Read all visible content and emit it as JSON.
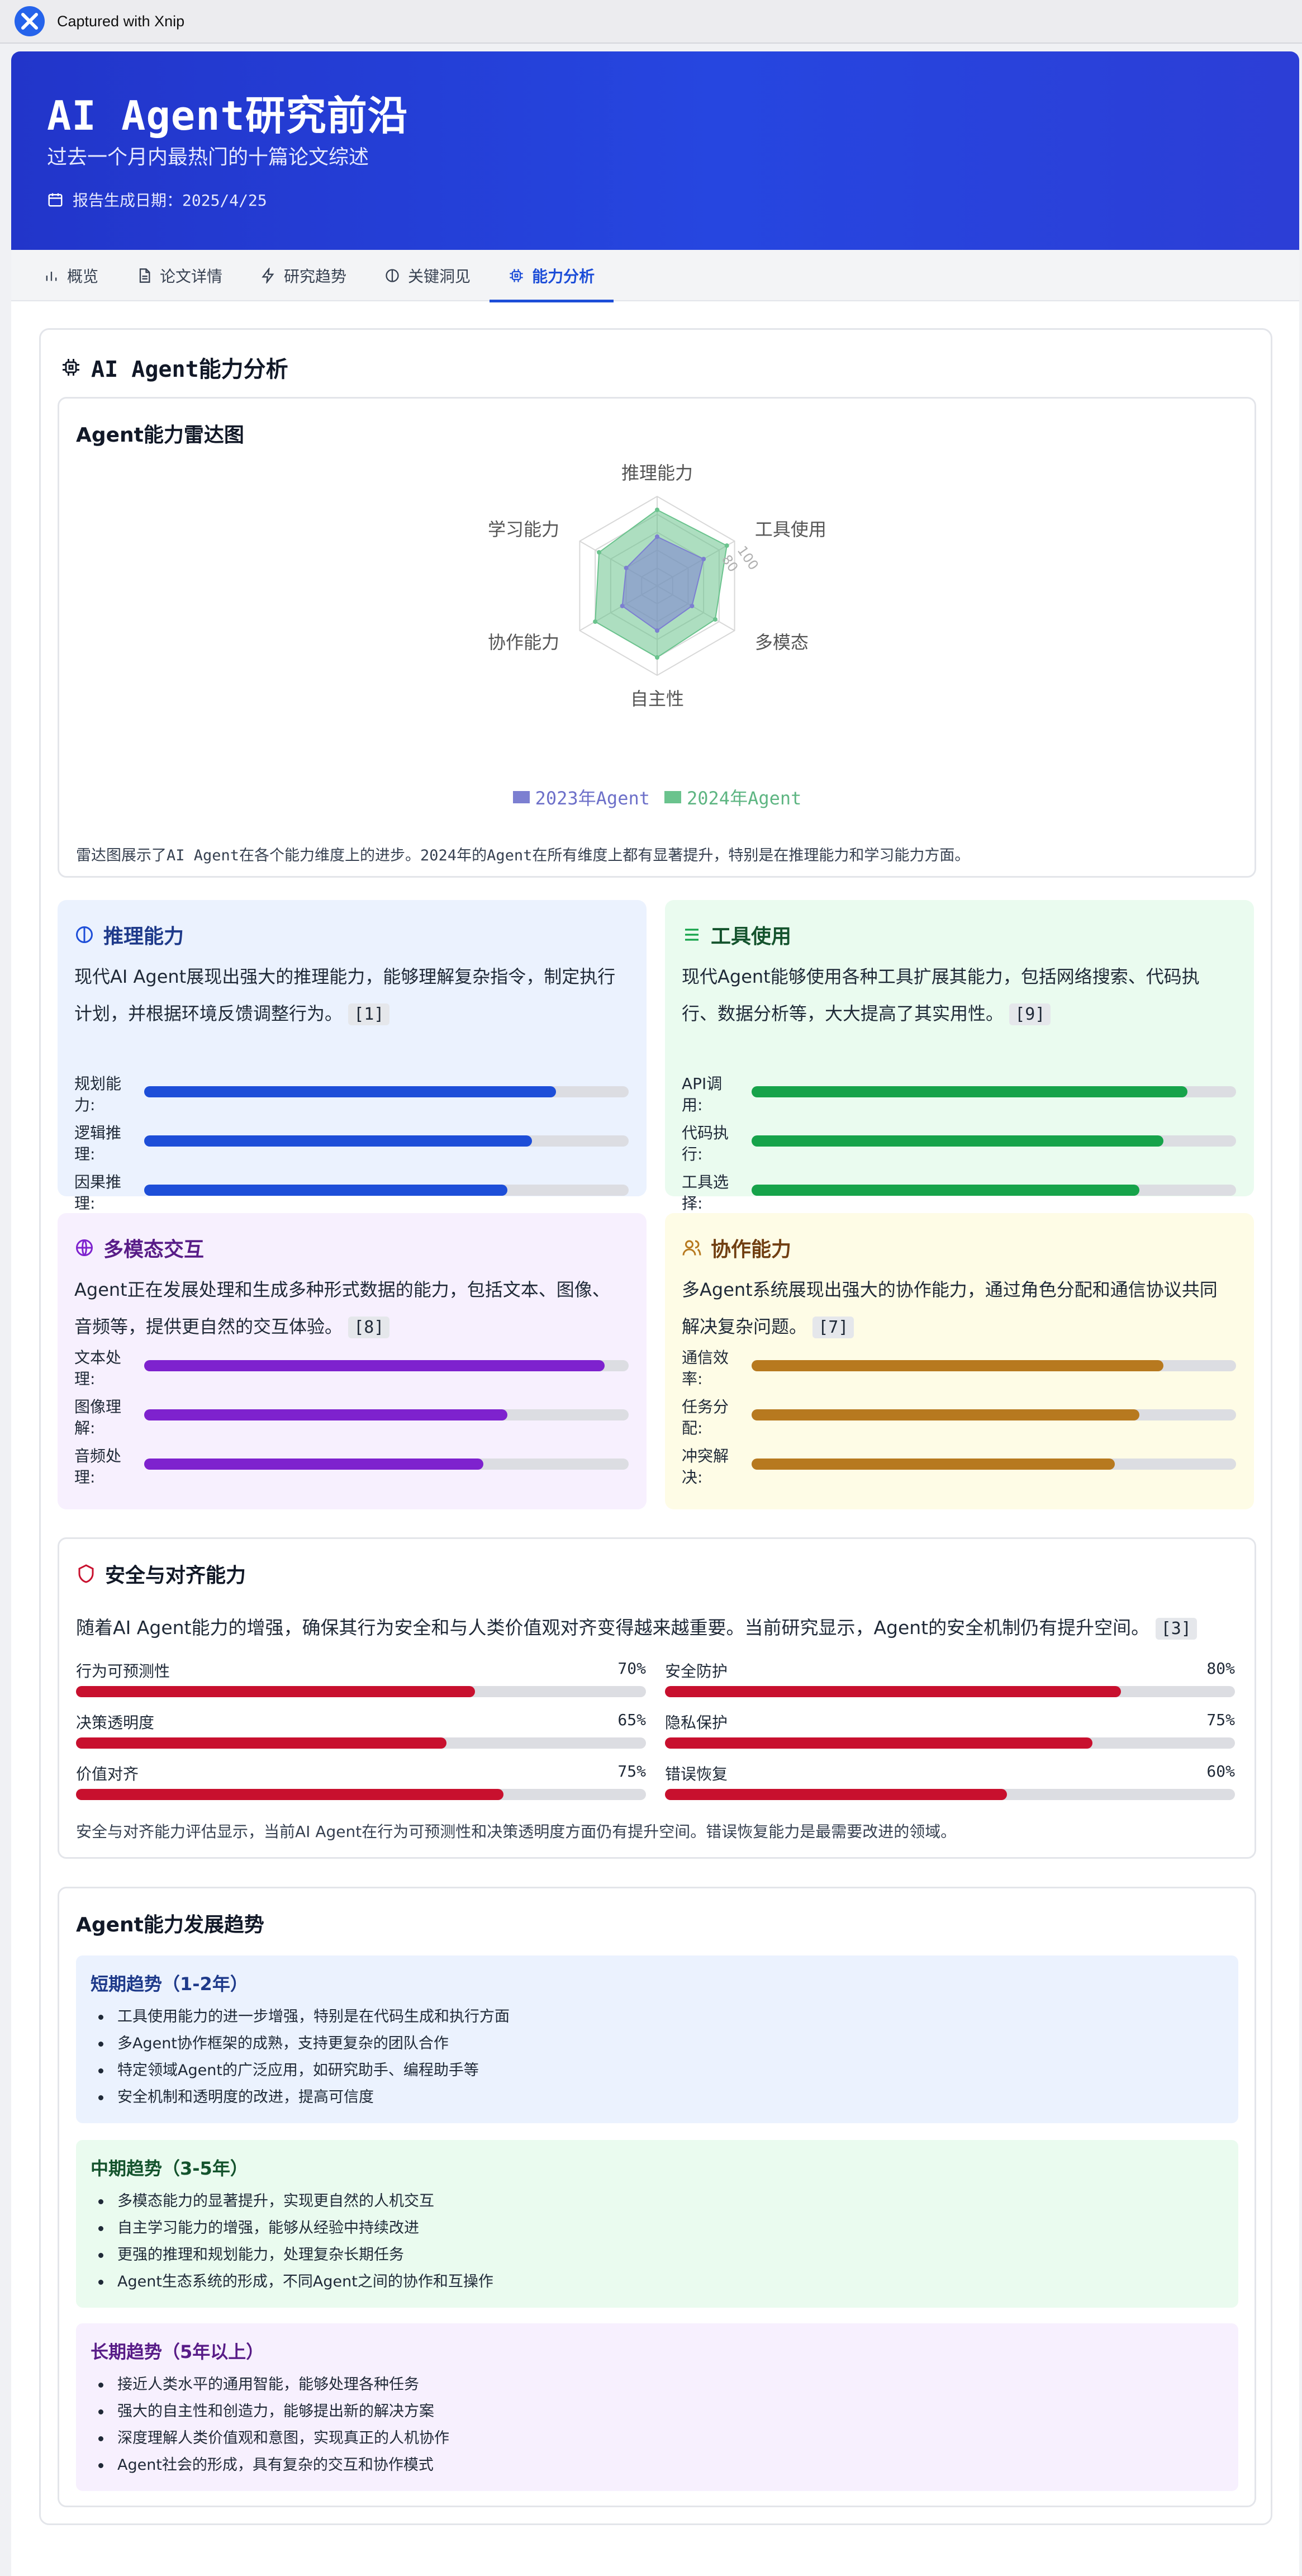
{
  "capture_bar": {
    "label": "Captured with Xnip"
  },
  "header": {
    "title": "AI Agent研究前沿",
    "subtitle": "过去一个月内最热门的十篇论文综述",
    "date": "报告生成日期：2025/4/25"
  },
  "tabs": [
    {
      "label": "概览",
      "icon": "bar-chart-icon",
      "active": false
    },
    {
      "label": "论文详情",
      "icon": "document-icon",
      "active": false
    },
    {
      "label": "研究趋势",
      "icon": "lightning-icon",
      "active": false
    },
    {
      "label": "关键洞见",
      "icon": "lightbulb-icon",
      "active": false
    },
    {
      "label": "能力分析",
      "icon": "cpu-icon",
      "active": true
    }
  ],
  "section_title": "AI Agent能力分析",
  "radar": {
    "title": "Agent能力雷达图",
    "description": "雷达图展示了AI Agent在各个能力维度上的进步。2024年的Agent在所有维度上都有显著提升，特别是在推理能力和学习能力方面。",
    "chart_data": {
      "type": "radar",
      "axes": [
        "推理能力",
        "工具使用",
        "多模态",
        "自主性",
        "协作能力",
        "学习能力"
      ],
      "rmax": 100,
      "tick_labels": [
        "80",
        "100"
      ],
      "series": [
        {
          "name": "2023年Agent",
          "color": "#7c7fd1",
          "values": [
            55,
            60,
            45,
            50,
            45,
            40
          ]
        },
        {
          "name": "2024年Agent",
          "color": "#6ac38d",
          "values": [
            85,
            90,
            75,
            80,
            80,
            75
          ]
        }
      ]
    }
  },
  "capabilities": [
    {
      "title": "推理能力",
      "icon": "lightbulb-icon",
      "color": "#1d4ed8",
      "title_color": "#1e3a8a",
      "bg": "#ebf2fe",
      "text": "现代AI Agent展现出强大的推理能力，能够理解复杂指令，制定执行计划，并根据环境反馈调整行为。",
      "citation": "[1]",
      "bars": [
        {
          "label": "规划能力:",
          "value": 85
        },
        {
          "label": "逻辑推理:",
          "value": 80
        },
        {
          "label": "因果推理:",
          "value": 75
        }
      ]
    },
    {
      "title": "工具使用",
      "icon": "list-icon",
      "color": "#16a34a",
      "title_color": "#14532d",
      "bg": "#eafbef",
      "text": "现代Agent能够使用各种工具扩展其能力，包括网络搜索、代码执行、数据分析等，大大提高了其实用性。",
      "citation": "[9]",
      "bars": [
        {
          "label": "API调用:",
          "value": 90
        },
        {
          "label": "代码执行:",
          "value": 85
        },
        {
          "label": "工具选择:",
          "value": 80
        }
      ]
    },
    {
      "title": "多模态交互",
      "icon": "globe-icon",
      "color": "#7e22ce",
      "title_color": "#581c87",
      "bg": "#f7f0fe",
      "text": "Agent正在发展处理和生成多种形式数据的能力，包括文本、图像、音频等，提供更自然的交互体验。",
      "citation": "[8]",
      "bars": [
        {
          "label": "文本处理:",
          "value": 95
        },
        {
          "label": "图像理解:",
          "value": 75
        },
        {
          "label": "音频处理:",
          "value": 70
        }
      ]
    },
    {
      "title": "协作能力",
      "icon": "users-icon",
      "color": "#b7791f",
      "title_color": "#713f12",
      "bg": "#fefce6",
      "text": "多Agent系统展现出强大的协作能力，通过角色分配和通信协议共同解决复杂问题。",
      "citation": "[7]",
      "bars": [
        {
          "label": "通信效率:",
          "value": 85
        },
        {
          "label": "任务分配:",
          "value": 80
        },
        {
          "label": "冲突解决:",
          "value": 75
        }
      ]
    }
  ],
  "safety": {
    "title": "安全与对齐能力",
    "text": "随着AI Agent能力的增强，确保其行为安全和与人类价值观对齐变得越来越重要。当前研究显示，Agent的安全机制仍有提升空间。",
    "citation": "[3]",
    "metrics": [
      {
        "label": "行为可预测性",
        "value": 70,
        "display": "70%"
      },
      {
        "label": "安全防护",
        "value": 80,
        "display": "80%"
      },
      {
        "label": "决策透明度",
        "value": 65,
        "display": "65%"
      },
      {
        "label": "隐私保护",
        "value": 75,
        "display": "75%"
      },
      {
        "label": "价值对齐",
        "value": 75,
        "display": "75%"
      },
      {
        "label": "错误恢复",
        "value": 60,
        "display": "60%"
      }
    ],
    "footer": "安全与对齐能力评估显示，当前AI Agent在行为可预测性和决策透明度方面仍有提升空间。错误恢复能力是最需要改进的领域。"
  },
  "trends": {
    "title": "Agent能力发展趋势",
    "groups": [
      {
        "title": "短期趋势（1-2年）",
        "color": "#1e3a8a",
        "bg": "#ebf2fe",
        "items": [
          "工具使用能力的进一步增强，特别是在代码生成和执行方面",
          "多Agent协作框架的成熟，支持更复杂的团队合作",
          "特定领域Agent的广泛应用，如研究助手、编程助手等",
          "安全机制和透明度的改进，提高可信度"
        ]
      },
      {
        "title": "中期趋势（3-5年）",
        "color": "#14532d",
        "bg": "#eafbef",
        "items": [
          "多模态能力的显著提升，实现更自然的人机交互",
          "自主学习能力的增强，能够从经验中持续改进",
          "更强的推理和规划能力，处理复杂长期任务",
          "Agent生态系统的形成，不同Agent之间的协作和互操作"
        ]
      },
      {
        "title": "长期趋势（5年以上）",
        "color": "#581c87",
        "bg": "#f7f0fe",
        "items": [
          "接近人类水平的通用智能，能够处理各种任务",
          "强大的自主性和创造力，能够提出新的解决方案",
          "深度理解人类价值观和意图，实现真正的人机协作",
          "Agent社会的形成，具有复杂的交互和协作模式"
        ]
      }
    ]
  }
}
